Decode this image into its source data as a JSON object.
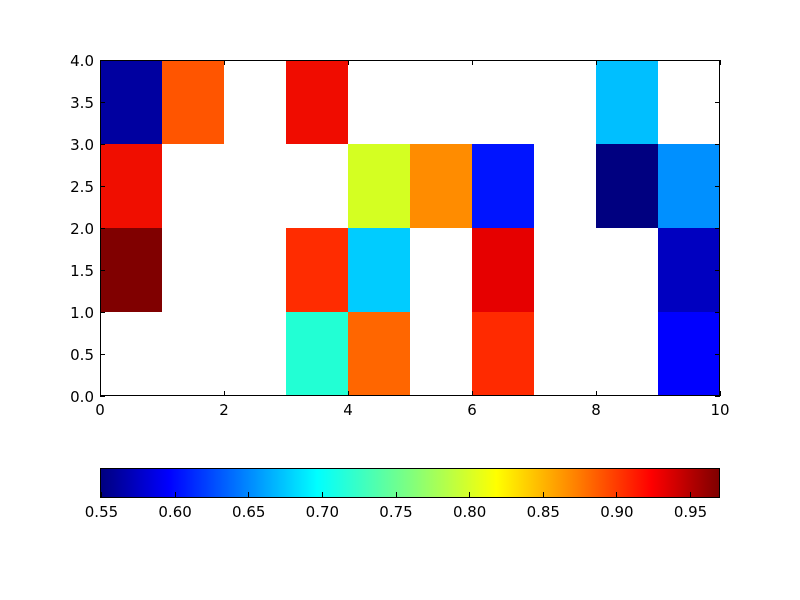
{
  "chart_data": {
    "type": "heatmap",
    "title": "",
    "xlabel": "",
    "ylabel": "",
    "xlim": [
      0,
      10
    ],
    "ylim": [
      0,
      4
    ],
    "grid": false,
    "colormap": "jet",
    "xticks": [
      "0",
      "2",
      "4",
      "6",
      "8",
      "10"
    ],
    "yticks": [
      "0.0",
      "0.5",
      "1.0",
      "1.5",
      "2.0",
      "2.5",
      "3.0",
      "3.5",
      "4.0"
    ],
    "colorbar": {
      "orientation": "horizontal",
      "range": [
        0.549,
        0.97
      ],
      "ticks": [
        "0.55",
        "0.60",
        "0.65",
        "0.70",
        "0.75",
        "0.80",
        "0.85",
        "0.90",
        "0.95"
      ]
    },
    "cells_note": "rows listed from y=0 (bottom) to y=3 (top); null = empty/white cell; columns x=0..9",
    "cells": [
      [
        null,
        null,
        null,
        0.72,
        0.885,
        null,
        0.905,
        null,
        null,
        0.6
      ],
      [
        0.97,
        null,
        null,
        0.905,
        0.685,
        null,
        0.925,
        null,
        null,
        0.58
      ],
      [
        0.915,
        null,
        null,
        null,
        0.8,
        0.855,
        0.61,
        null,
        0.55,
        0.66
      ],
      [
        0.57,
        0.89,
        null,
        0.915,
        null,
        null,
        null,
        null,
        0.68,
        null
      ]
    ],
    "cell_colors": [
      [
        null,
        null,
        null,
        "#22ffd4",
        "#ff6600",
        null,
        "#ff2a00",
        null,
        null,
        "#0000ff"
      ],
      [
        "#800000",
        null,
        null,
        "#ff2c00",
        "#00ccff",
        null,
        "#e60000",
        null,
        null,
        "#0000c0"
      ],
      [
        "#f00e00",
        null,
        null,
        null,
        "#d4ff22",
        "#ff8c00",
        "#0014ff",
        null,
        "#000080",
        "#0090ff"
      ],
      [
        "#0000a0",
        "#ff5500",
        null,
        "#f00c00",
        null,
        null,
        null,
        null,
        "#00bfff",
        null
      ]
    ]
  }
}
